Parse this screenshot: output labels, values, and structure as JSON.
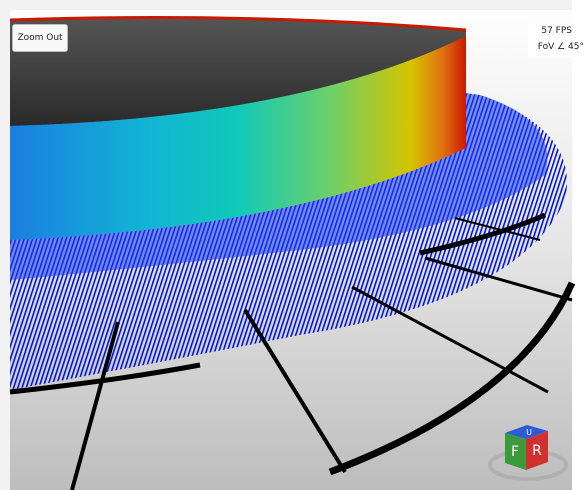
{
  "toolbar": {
    "zoom_button": "Zoom Out"
  },
  "stats": {
    "fps": "57 FPS",
    "fov": "FoV ∠ 45°"
  },
  "view_cube": {
    "front": "F",
    "right": "R",
    "up": "U"
  }
}
